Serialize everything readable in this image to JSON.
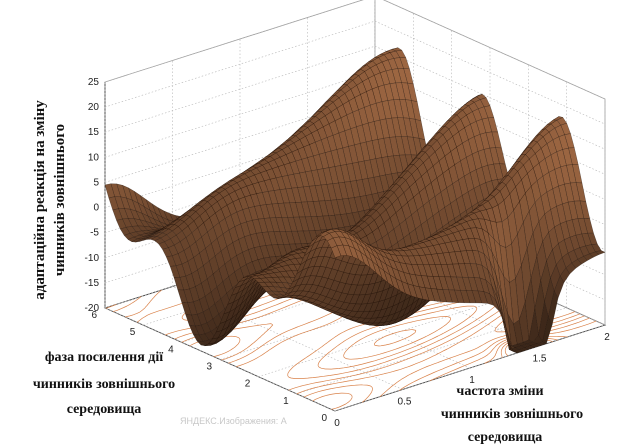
{
  "chart_data": {
    "type": "surface",
    "title": "",
    "xlabel_lines": [
      "частота  зміни",
      "чинників зовнішнього",
      "середовища"
    ],
    "ylabel_lines": [
      "фаза  посилення дії",
      "чинників зовнішнього",
      "середовища"
    ],
    "zlabel_lines": [
      "адаптаційна реакція на зміну",
      "чинників зовнішнього"
    ],
    "x_ticks": [
      "0",
      "0.5",
      "1",
      "1.5",
      "2"
    ],
    "x_tick_values": [
      0,
      0.5,
      1,
      1.5,
      2
    ],
    "y_ticks": [
      "0",
      "1",
      "2",
      "3",
      "4",
      "5",
      "6"
    ],
    "y_tick_values": [
      0,
      1,
      2,
      3,
      4,
      5,
      6
    ],
    "z_ticks": [
      "-20",
      "-15",
      "-10",
      "-5",
      "0",
      "5",
      "10",
      "15",
      "20",
      "25"
    ],
    "z_tick_values": [
      -20,
      -15,
      -10,
      -5,
      0,
      5,
      10,
      15,
      20,
      25
    ],
    "xlim": [
      0,
      2
    ],
    "ylim": [
      0,
      6
    ],
    "zlim": [
      -20,
      25
    ],
    "grid": true,
    "colormap": "copper",
    "surface_edge_color": "#1a0d05",
    "contour_color": "#d9824a",
    "watermark": "ЯНДЕКС.Изображения: А"
  }
}
